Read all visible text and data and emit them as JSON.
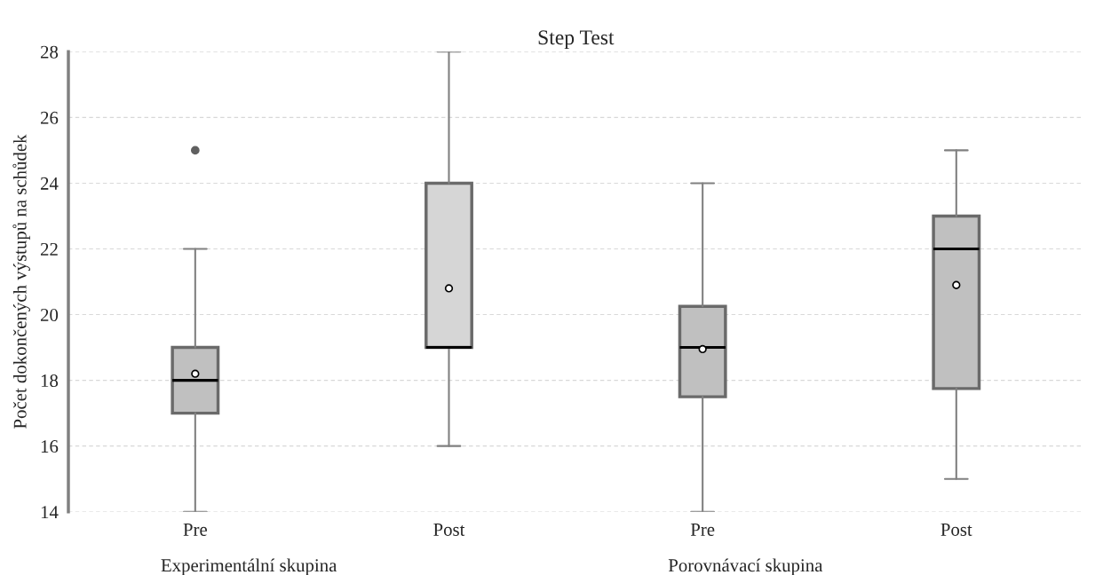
{
  "chart_data": {
    "type": "box",
    "title": "Step Test",
    "ylabel": "Počet dokončených výstupů na schůdek",
    "categories": [
      "Pre",
      "Post",
      "Pre",
      "Post"
    ],
    "boxes": [
      {
        "low": 14,
        "q1": 17,
        "median": 18,
        "q3": 19,
        "high": 22,
        "mean": 18.2,
        "outliers": [
          25
        ]
      },
      {
        "low": 16,
        "q1": 19,
        "median": 19,
        "q3": 24,
        "high": 28,
        "mean": 20.8
      },
      {
        "low": 14,
        "q1": 17.5,
        "median": 19,
        "q3": 20.25,
        "high": 24,
        "mean": 18.95
      },
      {
        "low": 15,
        "q1": 17.75,
        "median": 22,
        "q3": 23,
        "high": 25,
        "mean": 20.9
      }
    ],
    "colors": [
      "#c0c0c0",
      "#d6d6d6",
      "#c0c0c0",
      "#c0c0c0"
    ],
    "ylim": [
      14,
      28
    ],
    "yticks": [
      14,
      16,
      18,
      20,
      22,
      24,
      26,
      28
    ],
    "grid": "y",
    "legend": false,
    "annotations": [
      "Experimentální skupina",
      "Porovnávací skupina"
    ]
  }
}
